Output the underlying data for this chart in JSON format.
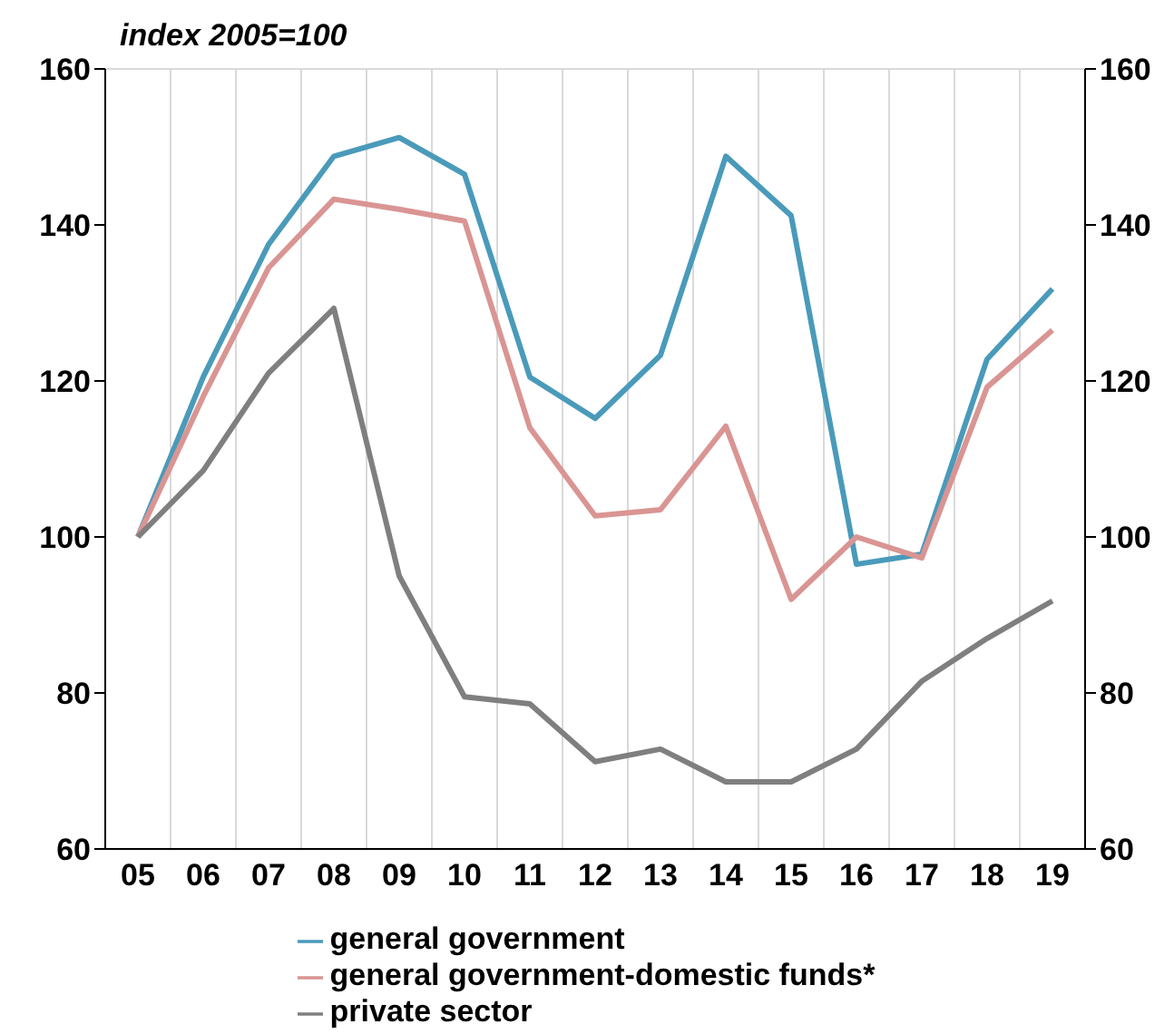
{
  "chart_data": {
    "type": "line",
    "title": "index 2005=100",
    "categories": [
      "05",
      "06",
      "07",
      "08",
      "09",
      "10",
      "11",
      "12",
      "13",
      "14",
      "15",
      "16",
      "17",
      "18",
      "19"
    ],
    "series": [
      {
        "name": "general government",
        "color": "#4a9aba",
        "values": [
          100,
          120.5,
          137.5,
          148.8,
          151.2,
          146.5,
          120.5,
          115.2,
          123.3,
          148.8,
          141.2,
          96.5,
          97.8,
          122.8,
          131.8
        ]
      },
      {
        "name": "general government-domestic funds*",
        "color": "#d99593",
        "values": [
          100,
          118,
          134.5,
          143.3,
          142,
          140.5,
          114,
          102.7,
          103.5,
          114.2,
          92,
          100,
          97.3,
          119.2,
          126.5
        ]
      },
      {
        "name": "private sector",
        "color": "#7f7f7f",
        "values": [
          100,
          108.5,
          121,
          129.3,
          95,
          79.5,
          78.6,
          71.2,
          72.8,
          68.6,
          68.6,
          72.8,
          81.5,
          87,
          91.8
        ]
      }
    ],
    "ylim": [
      60,
      160
    ],
    "yticks": [
      60,
      80,
      100,
      120,
      140,
      160
    ],
    "y2lim": [
      60,
      160
    ],
    "y2ticks": [
      60,
      80,
      100,
      120,
      140,
      160
    ],
    "grid": true,
    "legend": "bottom",
    "marker": "none",
    "line_style": "solid"
  }
}
